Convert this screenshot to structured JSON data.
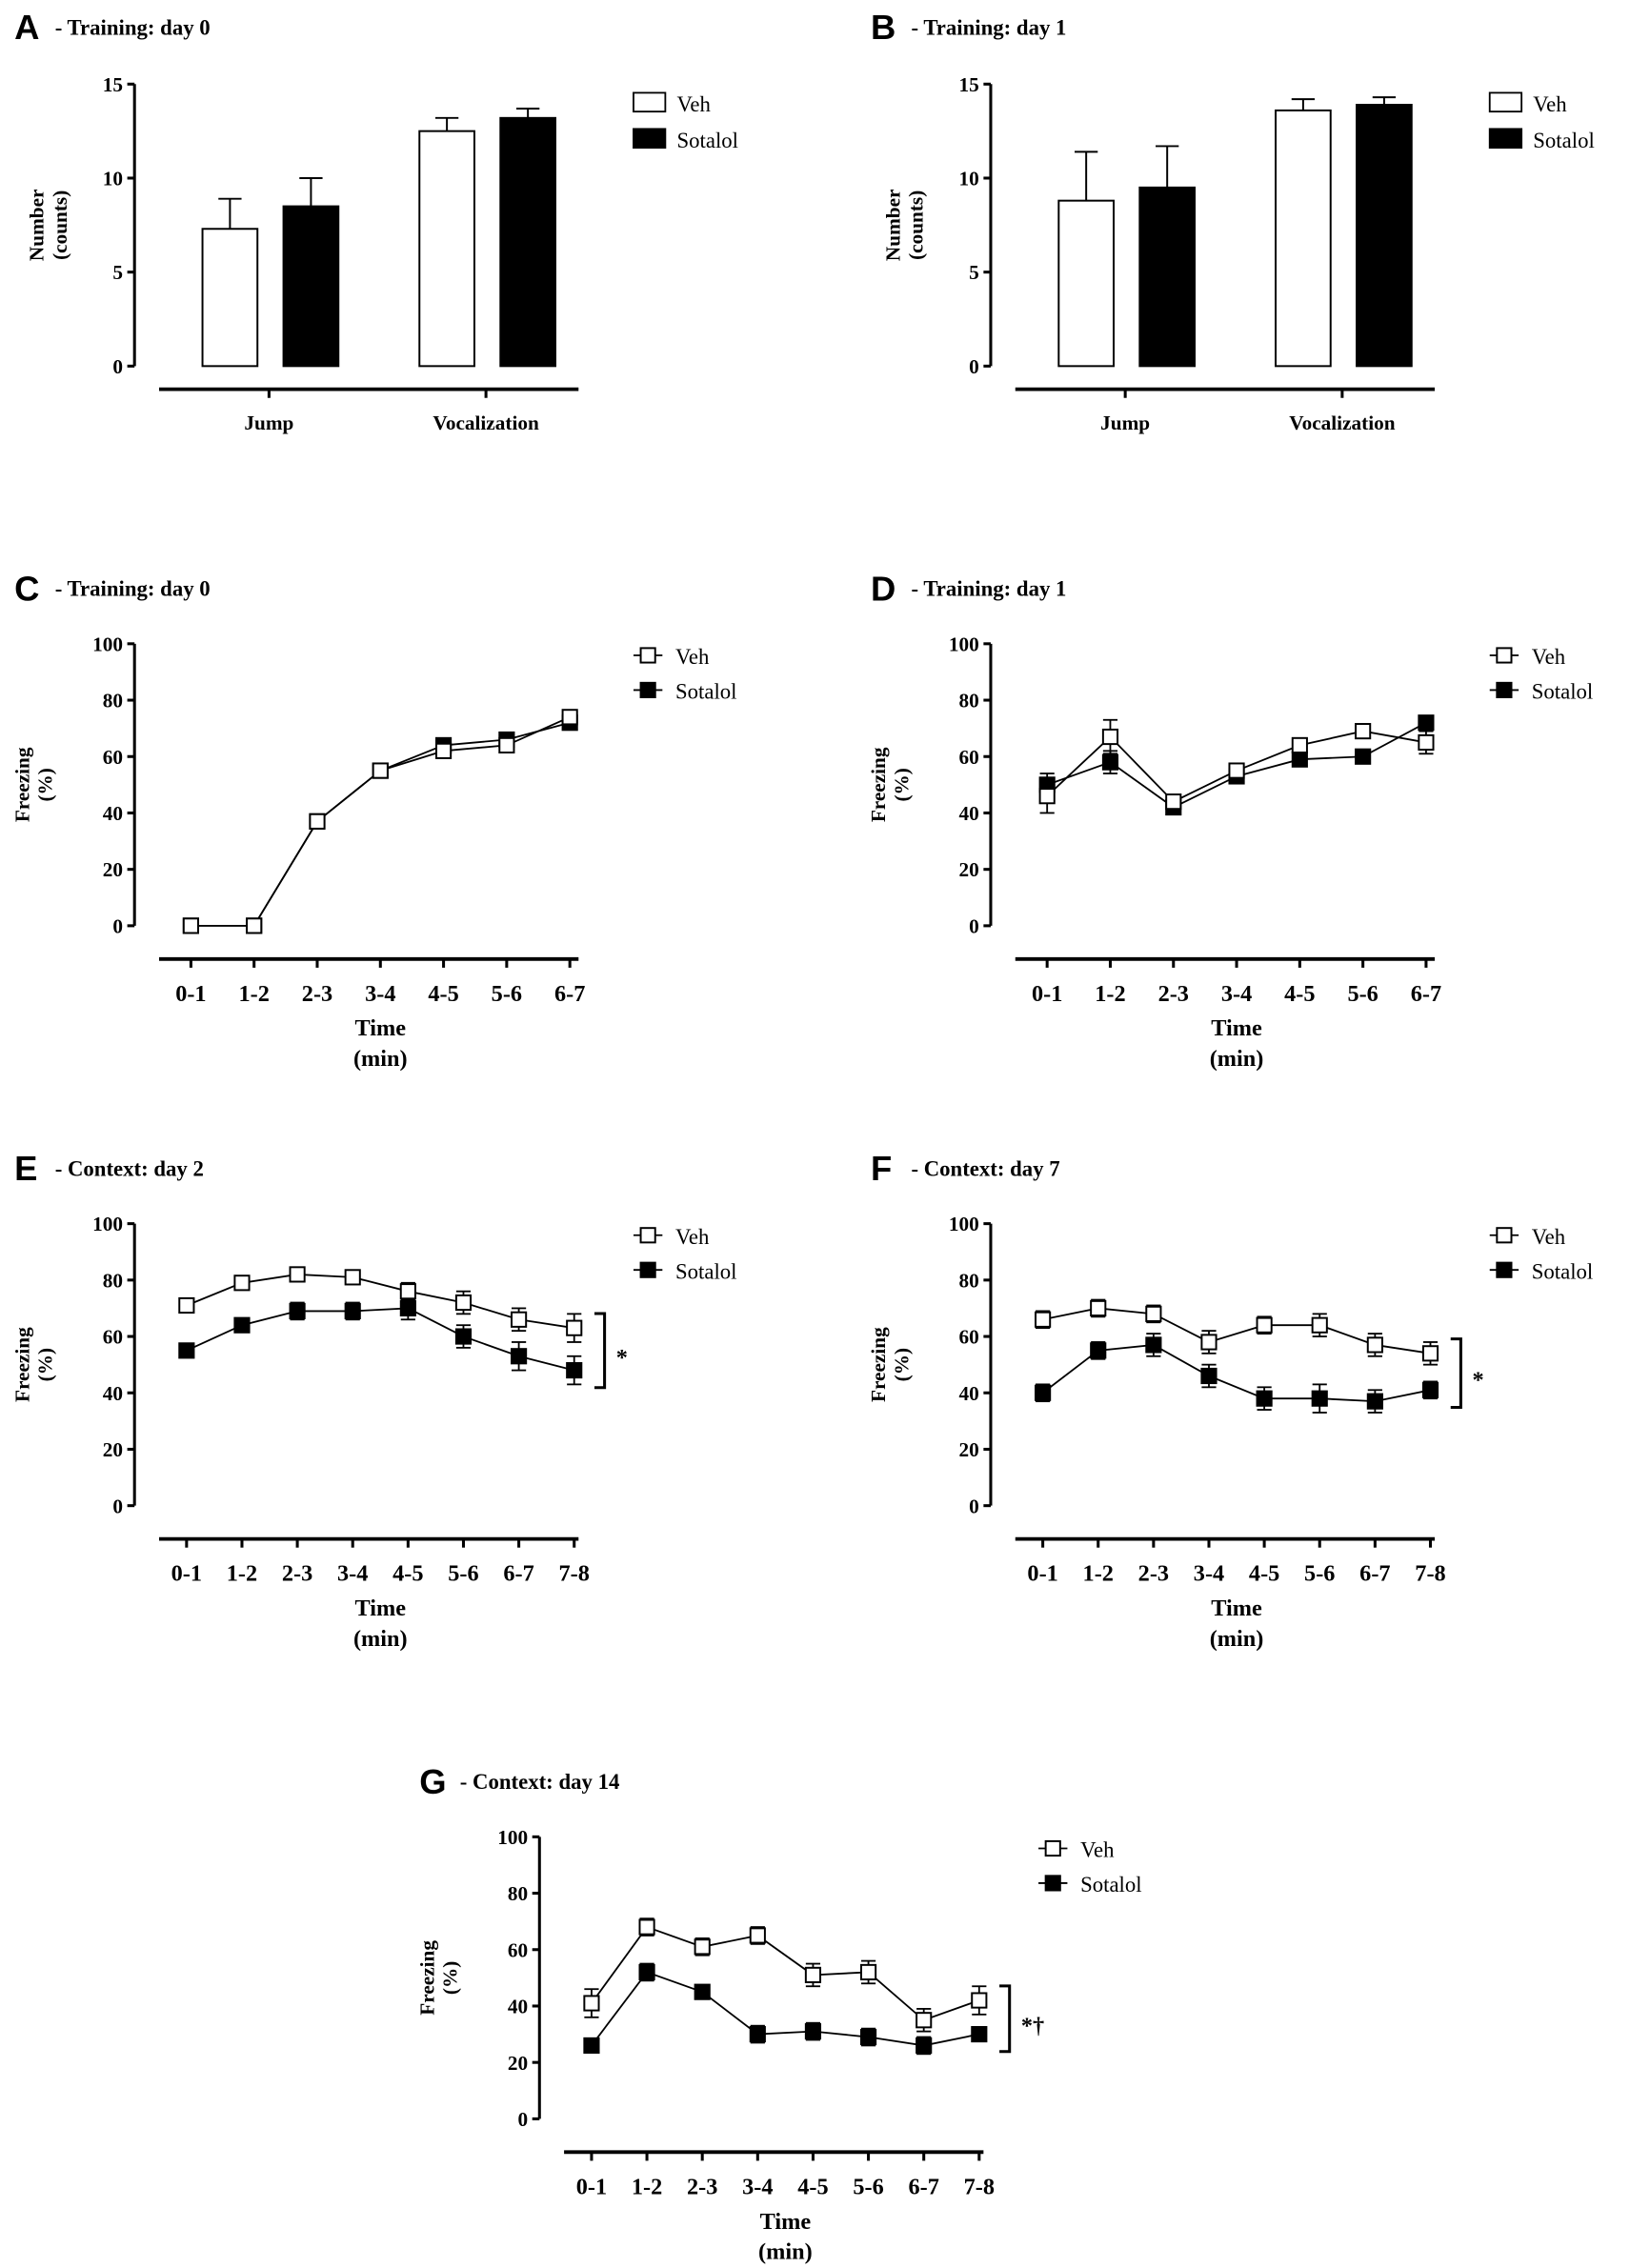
{
  "chart_data": [
    {
      "id": "A",
      "type": "bar",
      "letter": "A",
      "title": "- Training: day 0",
      "ylabel": [
        "Number",
        "(counts)"
      ],
      "xlabel": [],
      "ylim": [
        0,
        15
      ],
      "yticks": [
        0,
        5,
        10,
        15
      ],
      "categories": [
        "Jump",
        "Vocalization"
      ],
      "series": [
        {
          "name": "Veh",
          "values": [
            7.3,
            12.5
          ],
          "errors": [
            1.6,
            0.7
          ]
        },
        {
          "name": "Sotalol",
          "values": [
            8.5,
            13.2
          ],
          "errors": [
            1.5,
            0.5
          ]
        }
      ]
    },
    {
      "id": "B",
      "type": "bar",
      "letter": "B",
      "title": "- Training: day 1",
      "ylabel": [
        "Number",
        "(counts)"
      ],
      "xlabel": [],
      "ylim": [
        0,
        15
      ],
      "yticks": [
        0,
        5,
        10,
        15
      ],
      "categories": [
        "Jump",
        "Vocalization"
      ],
      "series": [
        {
          "name": "Veh",
          "values": [
            8.8,
            13.6
          ],
          "errors": [
            2.6,
            0.6
          ]
        },
        {
          "name": "Sotalol",
          "values": [
            9.5,
            13.9
          ],
          "errors": [
            2.2,
            0.4
          ]
        }
      ]
    },
    {
      "id": "C",
      "type": "line",
      "letter": "C",
      "title": "- Training: day 0",
      "ylabel": [
        "Freezing",
        "(%)"
      ],
      "xlabel": [
        "Time",
        "(min)"
      ],
      "ylim": [
        0,
        100
      ],
      "yticks": [
        0,
        20,
        40,
        60,
        80,
        100
      ],
      "categories": [
        "0-1",
        "1-2",
        "2-3",
        "3-4",
        "4-5",
        "5-6",
        "6-7"
      ],
      "series": [
        {
          "name": "Veh",
          "values": [
            0,
            0,
            37,
            55,
            62,
            64,
            74
          ],
          "errors": [
            0,
            0,
            2,
            2,
            2,
            2,
            2
          ]
        },
        {
          "name": "Sotalol",
          "values": [
            0,
            0,
            37,
            55,
            64,
            66,
            72
          ],
          "errors": [
            0,
            0,
            2,
            2,
            2,
            2,
            2
          ]
        }
      ],
      "annotation": ""
    },
    {
      "id": "D",
      "type": "line",
      "letter": "D",
      "title": "- Training: day 1",
      "ylabel": [
        "Freezing",
        "(%)"
      ],
      "xlabel": [
        "Time",
        "(min)"
      ],
      "ylim": [
        0,
        100
      ],
      "yticks": [
        0,
        20,
        40,
        60,
        80,
        100
      ],
      "categories": [
        "0-1",
        "1-2",
        "2-3",
        "3-4",
        "4-5",
        "5-6",
        "6-7"
      ],
      "series": [
        {
          "name": "Veh",
          "values": [
            46,
            67,
            44,
            55,
            64,
            69,
            65
          ],
          "errors": [
            6,
            6,
            2,
            2,
            2,
            2,
            4
          ]
        },
        {
          "name": "Sotalol",
          "values": [
            50,
            58,
            42,
            53,
            59,
            60,
            72
          ],
          "errors": [
            4,
            4,
            2,
            2,
            2,
            1,
            2
          ]
        }
      ],
      "annotation": ""
    },
    {
      "id": "E",
      "type": "line",
      "letter": "E",
      "title": "- Context: day 2",
      "ylabel": [
        "Freezing",
        "(%)"
      ],
      "xlabel": [
        "Time",
        "(min)"
      ],
      "ylim": [
        0,
        100
      ],
      "yticks": [
        0,
        20,
        40,
        60,
        80,
        100
      ],
      "categories": [
        "0-1",
        "1-2",
        "2-3",
        "3-4",
        "4-5",
        "5-6",
        "6-7",
        "7-8"
      ],
      "series": [
        {
          "name": "Veh",
          "values": [
            71,
            79,
            82,
            81,
            76,
            72,
            66,
            63
          ],
          "errors": [
            2,
            2,
            2,
            2,
            3,
            4,
            4,
            5
          ]
        },
        {
          "name": "Sotalol",
          "values": [
            55,
            64,
            69,
            69,
            70,
            60,
            53,
            48
          ],
          "errors": [
            1,
            2,
            3,
            3,
            4,
            4,
            5,
            5
          ]
        }
      ],
      "annotation": "*"
    },
    {
      "id": "F",
      "type": "line",
      "letter": "F",
      "title": "- Context: day 7",
      "ylabel": [
        "Freezing",
        "(%)"
      ],
      "xlabel": [
        "Time",
        "(min)"
      ],
      "ylim": [
        0,
        100
      ],
      "yticks": [
        0,
        20,
        40,
        60,
        80,
        100
      ],
      "categories": [
        "0-1",
        "1-2",
        "2-3",
        "3-4",
        "4-5",
        "5-6",
        "6-7",
        "7-8"
      ],
      "series": [
        {
          "name": "Veh",
          "values": [
            66,
            70,
            68,
            58,
            64,
            64,
            57,
            54
          ],
          "errors": [
            3,
            3,
            3,
            4,
            3,
            4,
            4,
            4
          ]
        },
        {
          "name": "Sotalol",
          "values": [
            40,
            55,
            57,
            46,
            38,
            38,
            37,
            41
          ],
          "errors": [
            3,
            3,
            4,
            4,
            4,
            5,
            4,
            3
          ]
        }
      ],
      "annotation": "*"
    },
    {
      "id": "G",
      "type": "line",
      "letter": "G",
      "title": "- Context: day 14",
      "ylabel": [
        "Freezing",
        "(%)"
      ],
      "xlabel": [
        "Time",
        "(min)"
      ],
      "ylim": [
        0,
        100
      ],
      "yticks": [
        0,
        20,
        40,
        60,
        80,
        100
      ],
      "categories": [
        "0-1",
        "1-2",
        "2-3",
        "3-4",
        "4-5",
        "5-6",
        "6-7",
        "7-8"
      ],
      "series": [
        {
          "name": "Veh",
          "values": [
            41,
            68,
            61,
            65,
            51,
            52,
            35,
            42
          ],
          "errors": [
            5,
            3,
            3,
            3,
            4,
            4,
            4,
            5
          ]
        },
        {
          "name": "Sotalol",
          "values": [
            26,
            52,
            45,
            30,
            31,
            29,
            26,
            30
          ],
          "errors": [
            2,
            3,
            2,
            3,
            3,
            3,
            3,
            2
          ]
        }
      ],
      "annotation": "*†"
    }
  ]
}
